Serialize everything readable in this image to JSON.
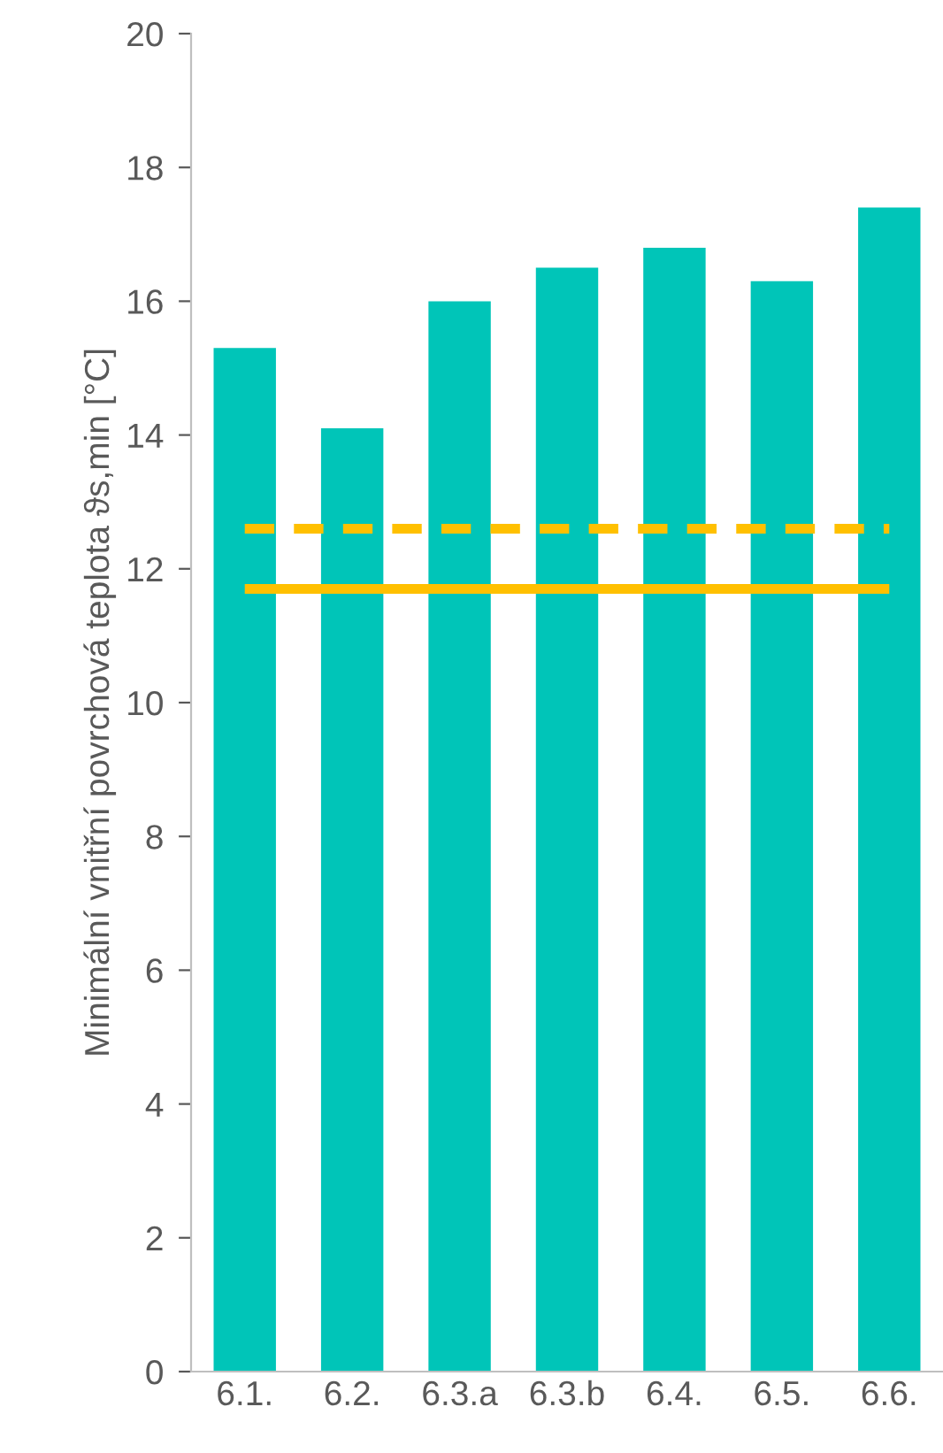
{
  "chart_data": {
    "type": "bar",
    "ylabel": "Minimální vnitřní povrchová teplota ϑs,min [°C]",
    "categories": [
      "6.1.",
      "6.2.",
      "6.3.a",
      "6.3.b",
      "6.4.",
      "6.5.",
      "6.6."
    ],
    "values": [
      15.3,
      14.1,
      16.0,
      16.5,
      16.8,
      16.3,
      17.4
    ],
    "color": "#00c5b8",
    "ylim": [
      0,
      20
    ],
    "yticks": [
      0,
      2,
      4,
      6,
      8,
      10,
      12,
      14,
      16,
      18,
      20
    ],
    "grid": false,
    "legend": false,
    "ref_lines": [
      {
        "axis": "y",
        "value": 12.6,
        "color": "#ffc000",
        "line_style": "dashed"
      },
      {
        "axis": "y",
        "value": 11.7,
        "color": "#ffc000",
        "line_style": "solid"
      }
    ]
  }
}
